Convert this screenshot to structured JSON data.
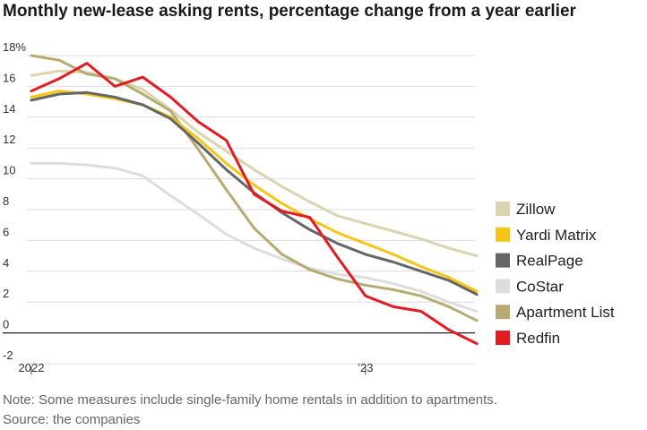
{
  "chart_data": {
    "type": "line",
    "title": "Monthly new-lease asking rents, percentage change from a year earlier",
    "note": "Note: Some measures include single-family home rentals in addition to apartments.",
    "source": "Source: the companies",
    "xlabel": "",
    "ylabel": "",
    "x_ticks": [
      "2022",
      "’23"
    ],
    "y_ticks": [
      "18%",
      "16",
      "14",
      "12",
      "10",
      "8",
      "6",
      "4",
      "2",
      "0",
      "-2"
    ],
    "ylim": [
      -2,
      18
    ],
    "grid": true,
    "legend_position": "right",
    "x": [
      "2022-01",
      "2022-02",
      "2022-03",
      "2022-04",
      "2022-05",
      "2022-06",
      "2022-07",
      "2022-08",
      "2022-09",
      "2022-10",
      "2022-11",
      "2022-12",
      "2023-01",
      "2023-02",
      "2023-03",
      "2023-04",
      "2023-05"
    ],
    "series": [
      {
        "name": "Zillow",
        "color": "#dcd3b0",
        "values": [
          16.7,
          17.0,
          16.9,
          16.5,
          15.8,
          14.5,
          13.0,
          11.8,
          10.6,
          9.5,
          8.5,
          7.6,
          7.1,
          6.6,
          6.1,
          5.5,
          5.0
        ]
      },
      {
        "name": "Yardi Matrix",
        "color": "#f5c518",
        "values": [
          15.3,
          15.7,
          15.5,
          15.2,
          14.8,
          14.0,
          12.6,
          11.0,
          9.6,
          8.4,
          7.4,
          6.5,
          5.8,
          5.1,
          4.3,
          3.6,
          2.7
        ]
      },
      {
        "name": "RealPage",
        "color": "#666666",
        "values": [
          15.1,
          15.5,
          15.6,
          15.3,
          14.8,
          13.9,
          12.3,
          10.6,
          9.1,
          7.8,
          6.7,
          5.8,
          5.1,
          4.6,
          4.0,
          3.4,
          2.5
        ]
      },
      {
        "name": "CoStar",
        "color": "#dddddd",
        "values": [
          11.0,
          11.0,
          10.9,
          10.7,
          10.2,
          8.9,
          7.7,
          6.4,
          5.5,
          4.8,
          4.2,
          3.8,
          3.6,
          3.2,
          2.7,
          2.0,
          1.4
        ]
      },
      {
        "name": "Apartment List",
        "color": "#b7aa72",
        "values": [
          18.0,
          17.7,
          16.8,
          16.5,
          15.5,
          14.4,
          11.9,
          9.3,
          6.8,
          5.1,
          4.1,
          3.5,
          3.1,
          2.8,
          2.4,
          1.7,
          0.8
        ]
      },
      {
        "name": "Redfin",
        "color": "#e31b23",
        "values": [
          15.7,
          16.5,
          17.5,
          16.0,
          16.6,
          15.3,
          13.7,
          12.5,
          9.0,
          7.9,
          7.5,
          4.9,
          2.4,
          1.7,
          1.4,
          0.2,
          -0.7
        ]
      }
    ]
  }
}
